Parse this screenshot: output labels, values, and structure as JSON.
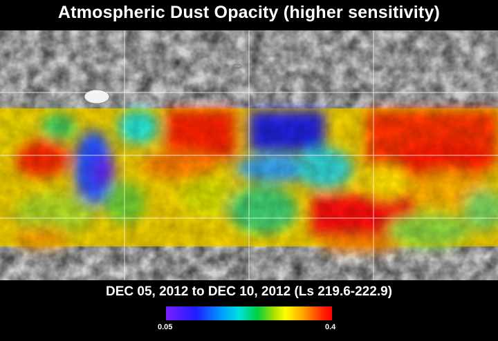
{
  "title": "Atmospheric Dust Opacity (higher sensitivity)",
  "date_range": "DEC 05, 2012 to DEC 10, 2012 (Ls 219.6-222.9)",
  "colorbar": {
    "min_label": "0.05",
    "max_label": "0.4"
  },
  "colors": {
    "low": "#7a1fff",
    "blue": "#1d1dff",
    "cyan": "#00e0e0",
    "green": "#00d040",
    "yellow": "#ffff00",
    "orange": "#ffa000",
    "high": "#ff0000",
    "relief": "#cfcfcf"
  }
}
